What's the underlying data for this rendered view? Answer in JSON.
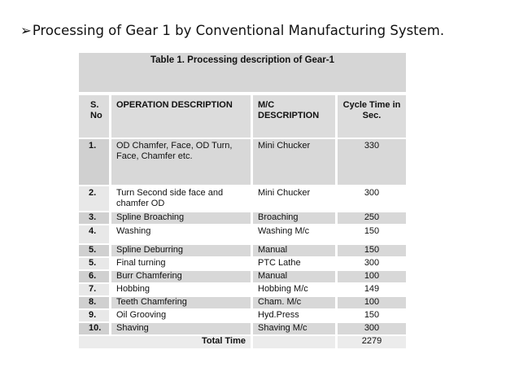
{
  "slide": {
    "heading_bullet": "➢",
    "heading": "Processing of Gear 1 by Conventional Manufacturing System."
  },
  "table": {
    "caption": "Table 1. Processing description of Gear-1",
    "headers": {
      "sno": "S. No",
      "operation": "OPERATION DESCRIPTION",
      "mc": "M/C DESCRIPTION",
      "cycle": "Cycle Time in Sec."
    },
    "rows": [
      {
        "sno": "1.",
        "operation": "OD Chamfer, Face, OD Turn, Face, Chamfer etc.",
        "mc": "Mini Chucker",
        "cycle": "330"
      },
      {
        "sno": "2.",
        "operation": "Turn Second side face and chamfer OD",
        "mc": "Mini Chucker",
        "cycle": "300"
      },
      {
        "sno": "3.",
        "operation": "Spline Broaching",
        "mc": "Broaching",
        "cycle": "250"
      },
      {
        "sno": "4.",
        "operation": "Washing",
        "mc": "Washing M/c",
        "cycle": "150"
      },
      {
        "sno": "5.",
        "operation": "Spline Deburring",
        "mc": "Manual",
        "cycle": "150"
      },
      {
        "sno": "5.",
        "operation": "Final turning",
        "mc": "PTC Lathe",
        "cycle": "300"
      },
      {
        "sno": "6.",
        "operation": "Burr Chamfering",
        "mc": "Manual",
        "cycle": "100"
      },
      {
        "sno": "7.",
        "operation": "Hobbing",
        "mc": "Hobbing M/c",
        "cycle": "149"
      },
      {
        "sno": "8.",
        "operation": "Teeth Chamfering",
        "mc": "Cham. M/c",
        "cycle": "100"
      },
      {
        "sno": "9.",
        "operation": "Oil Grooving",
        "mc": "Hyd.Press",
        "cycle": "150"
      },
      {
        "sno": "10.",
        "operation": "Shaving",
        "mc": "Shaving M/c",
        "cycle": "300"
      }
    ],
    "total_label": "Total Time",
    "total_value": "2279"
  }
}
